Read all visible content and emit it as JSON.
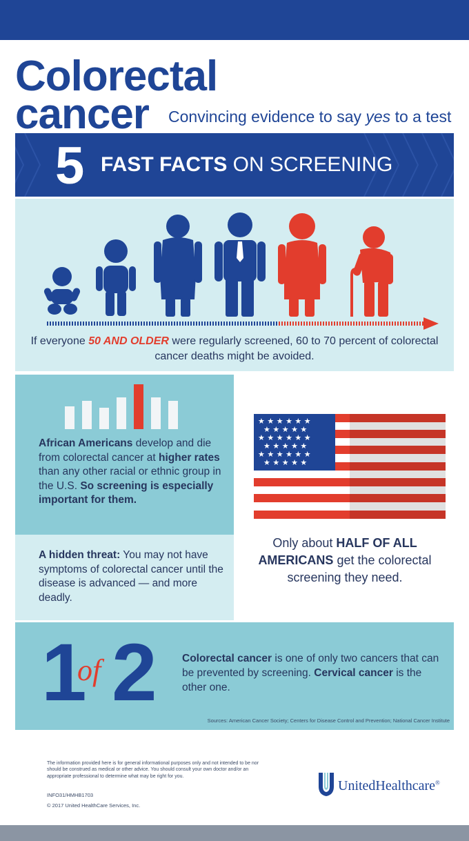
{
  "header": {
    "title_line1": "Colorectal",
    "title_line2": "cancer",
    "subtitle_before": "Convincing evidence to say ",
    "subtitle_emphasis": "yes",
    "subtitle_after": " to a test"
  },
  "banner": {
    "number": "5",
    "bold_text": "FAST FACTS",
    "rest_text": " ON SCREENING"
  },
  "fact_age": {
    "caption_before": "If everyone ",
    "caption_highlight": "50 AND OLDER",
    "caption_after": " were regularly screened, 60 to 70 percent of colorectal cancer deaths might be avoided."
  },
  "fact_african_americans": {
    "bold1": "African Americans",
    "text1": " develop and die from colorectal cancer at ",
    "bold2": "higher rates",
    "text2": " than any other racial or ethnic group in the U.S. ",
    "bold3": "So screening is especially important for them."
  },
  "fact_hidden": {
    "bold": "A hidden threat:",
    "text": " You may not have symptoms of colorectal cancer until the disease is advanced — and more deadly."
  },
  "fact_half": {
    "text1": "Only about ",
    "bold": "HALF OF ALL AMERICANS",
    "text2": " get the colorectal screening they need."
  },
  "fact_1of2": {
    "num1": "1",
    "of": "of",
    "num2": "2",
    "bold1": "Colorectal cancer",
    "text1": " is one of only two cancers that can be prevented by screening. ",
    "bold2": "Cervical cancer",
    "text2": " is the other one.",
    "sources": "Sources: American Cancer Society; Centers for Disease Control and Prevention; National Cancer Institute"
  },
  "footer": {
    "disclaimer": "The information provided here is for general informational purposes only and not intended to be nor should be construed as medical or other advice. You should consult your own doctor and/or an appropriate professional to determine what may be right for you.",
    "code": "INFO31/HMHB1703",
    "copyright": "© 2017 United HealthCare Services, Inc.",
    "logo_text": "UnitedHealthcare",
    "logo_mark": "®"
  },
  "colors": {
    "navy": "#1f4596",
    "red": "#e23d2d",
    "light_teal": "#d4edf1",
    "teal": "#8bcbd6"
  }
}
